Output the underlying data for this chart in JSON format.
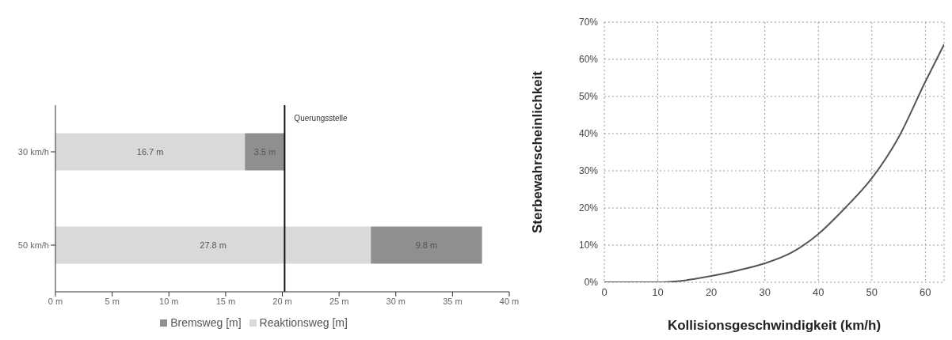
{
  "chart_data": [
    {
      "type": "bar",
      "orientation": "horizontal",
      "stacked": true,
      "categories": [
        "30 km/h",
        "50 km/h"
      ],
      "series": [
        {
          "name": "Reaktionsweg [m]",
          "color": "#d9d9d9",
          "values": [
            16.7,
            27.8
          ],
          "value_labels": [
            "16.7 m",
            "27.8 m"
          ]
        },
        {
          "name": "Bremsweg [m]",
          "color": "#8f8f8f",
          "values": [
            3.5,
            9.8
          ],
          "value_labels": [
            "3.5 m",
            "9.8 m"
          ]
        }
      ],
      "xlim": [
        0,
        40
      ],
      "xticks": [
        {
          "value": 0,
          "label": "0 m"
        },
        {
          "value": 5,
          "label": "5 m"
        },
        {
          "value": 10,
          "label": "10 m"
        },
        {
          "value": 15,
          "label": "15 m"
        },
        {
          "value": 20,
          "label": "20 m"
        },
        {
          "value": 25,
          "label": "25 m"
        },
        {
          "value": 30,
          "label": "30 m"
        },
        {
          "value": 35,
          "label": "35 m"
        },
        {
          "value": 40,
          "label": "40 m"
        }
      ],
      "ref_lines": [
        {
          "axis": "x",
          "value": 20.2,
          "label": "Querungsstelle",
          "color": "#111111"
        }
      ],
      "grid": false,
      "legend": "bottom"
    },
    {
      "type": "line",
      "xlabel": "Kollisionsgeschwindigkeit (km/h)",
      "ylabel": "Sterbewahrscheinlichkeit",
      "x": [
        0,
        5,
        10,
        15,
        20,
        25,
        30,
        35,
        40,
        45,
        50,
        55,
        60,
        63.5
      ],
      "series": [
        {
          "color": "#555555",
          "values": [
            0,
            0,
            0,
            0.5,
            1.7,
            3.2,
            5.1,
            8,
            13,
            20,
            28,
            39,
            54,
            64
          ]
        }
      ],
      "xlim": [
        0,
        63.5
      ],
      "xticks": [
        0,
        10,
        20,
        30,
        40,
        50,
        60
      ],
      "ylim": [
        0,
        70
      ],
      "yticks": [
        {
          "value": 0,
          "label": "0%"
        },
        {
          "value": 10,
          "label": "10%"
        },
        {
          "value": 20,
          "label": "20%"
        },
        {
          "value": 30,
          "label": "30%"
        },
        {
          "value": 40,
          "label": "40%"
        },
        {
          "value": 50,
          "label": "50%"
        },
        {
          "value": 60,
          "label": "60%"
        },
        {
          "value": 70,
          "label": "70%"
        }
      ],
      "grid": true,
      "marker": "none",
      "line_style": "solid",
      "legend": false
    }
  ]
}
